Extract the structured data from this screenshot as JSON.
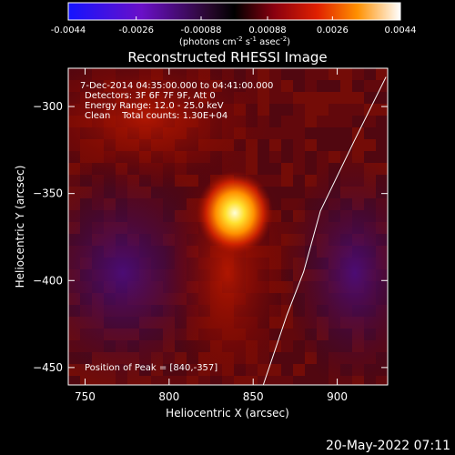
{
  "colorbar": {
    "ticks": [
      "-0.0044",
      "-0.0026",
      "-0.00088",
      "0.00088",
      "0.0026",
      "0.0044"
    ],
    "unit_label": "(photons cm",
    "unit_sup1": "-2",
    "unit_s": " s",
    "unit_sup2": "-1",
    "unit_asec": " asec",
    "unit_sup3": "-2",
    "unit_close": ")",
    "range": [
      -0.0044,
      0.0044
    ]
  },
  "chart_data": {
    "type": "heatmap",
    "title": "Reconstructed RHESSI Image",
    "xlabel": "Heliocentric X (arcsec)",
    "ylabel": "Heliocentric Y (arcsec)",
    "xlim": [
      740,
      930
    ],
    "ylim": [
      -460,
      -278
    ],
    "x_ticks": [
      750,
      800,
      850,
      900
    ],
    "y_ticks": [
      -300,
      -350,
      -400,
      -450
    ],
    "annotations": [
      "7-Dec-2014 04:35:00.000 to 04:41:00.000",
      "Detectors: 3F 6F 7F 9F, Att 0",
      "Energy Range: 12.0 - 25.0 keV",
      "Clean    Total counts: 1.30E+04",
      "Position of Peak = [840,-357]"
    ],
    "peak": [
      840,
      -357
    ],
    "limb_line": [
      [
        856,
        -460
      ],
      [
        870,
        -420
      ],
      [
        880,
        -395
      ],
      [
        890,
        -360
      ],
      [
        910,
        -320
      ],
      [
        929,
        -283
      ]
    ],
    "colormap": [
      "#1414ff",
      "#5a0fb0",
      "#2a0830",
      "#000000",
      "#7a0000",
      "#d81000",
      "#ff7000",
      "#ffd020",
      "#ffffff"
    ]
  },
  "footer_timestamp": "20-May-2022 07:11"
}
